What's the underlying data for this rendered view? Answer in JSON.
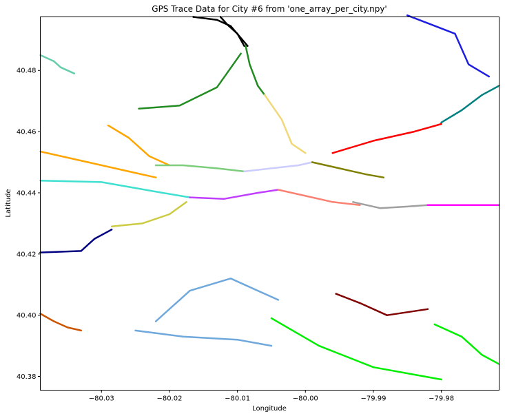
{
  "chart_data": {
    "type": "scatter",
    "title": "GPS Trace Data for City #6 from 'one_array_per_city.npy'",
    "xlabel": "Longitude",
    "ylabel": "Latitude",
    "xlim": [
      -80.039,
      -79.9715
    ],
    "ylim": [
      40.3755,
      40.4975
    ],
    "xticks": [
      {
        "value": -80.03,
        "label": "−80.03"
      },
      {
        "value": -80.02,
        "label": "−80.02"
      },
      {
        "value": -80.01,
        "label": "−80.01"
      },
      {
        "value": -80.0,
        "label": "−80.00"
      },
      {
        "value": -79.99,
        "label": "−79.99"
      },
      {
        "value": -79.98,
        "label": "−79.98"
      }
    ],
    "yticks": [
      {
        "value": 40.38,
        "label": "40.38"
      },
      {
        "value": 40.4,
        "label": "40.40"
      },
      {
        "value": 40.42,
        "label": "40.42"
      },
      {
        "value": 40.44,
        "label": "40.44"
      },
      {
        "value": 40.46,
        "label": "40.46"
      },
      {
        "value": 40.48,
        "label": "40.48"
      }
    ],
    "grid": false,
    "legend": "none",
    "series": [
      {
        "color": "#000000",
        "points": [
          [
            -80.0125,
            40.4975
          ],
          [
            -80.0115,
            40.495
          ],
          [
            -80.01,
            40.492
          ],
          [
            -80.009,
            40.488
          ]
        ]
      },
      {
        "color": "#000000",
        "points": [
          [
            -80.0165,
            40.4975
          ],
          [
            -80.013,
            40.4965
          ],
          [
            -80.011,
            40.4945
          ],
          [
            -80.0085,
            40.488
          ]
        ]
      },
      {
        "color": "#228b22",
        "points": [
          [
            -80.0088,
            40.488
          ],
          [
            -80.0082,
            40.482
          ],
          [
            -80.007,
            40.475
          ],
          [
            -80.006,
            40.472
          ]
        ]
      },
      {
        "color": "#228b22",
        "points": [
          [
            -80.0245,
            40.4675
          ],
          [
            -80.0185,
            40.4685
          ],
          [
            -80.013,
            40.4745
          ],
          [
            -80.0095,
            40.4855
          ]
        ]
      },
      {
        "color": "#f0d878",
        "points": [
          [
            -80.006,
            40.472
          ],
          [
            -80.0035,
            40.464
          ],
          [
            -80.002,
            40.456
          ],
          [
            -80.0,
            40.453
          ]
        ]
      },
      {
        "color": "#ffa500",
        "points": [
          [
            -80.039,
            40.4535
          ],
          [
            -80.032,
            40.45
          ],
          [
            -80.026,
            40.447
          ],
          [
            -80.022,
            40.445
          ]
        ]
      },
      {
        "color": "#ffa500",
        "points": [
          [
            -80.029,
            40.462
          ],
          [
            -80.026,
            40.458
          ],
          [
            -80.023,
            40.452
          ],
          [
            -80.02,
            40.449
          ]
        ]
      },
      {
        "color": "#7ccd7c",
        "points": [
          [
            -80.022,
            40.449
          ],
          [
            -80.018,
            40.449
          ],
          [
            -80.013,
            40.448
          ],
          [
            -80.009,
            40.447
          ]
        ]
      },
      {
        "color": "#ccccff",
        "points": [
          [
            -80.009,
            40.447
          ],
          [
            -80.005,
            40.448
          ],
          [
            -80.001,
            40.449
          ],
          [
            -79.999,
            40.45
          ]
        ]
      },
      {
        "color": "#808000",
        "points": [
          [
            -79.999,
            40.45
          ],
          [
            -79.995,
            40.448
          ],
          [
            -79.991,
            40.446
          ],
          [
            -79.9885,
            40.445
          ]
        ]
      },
      {
        "color": "#ff0000",
        "points": [
          [
            -79.996,
            40.453
          ],
          [
            -79.99,
            40.457
          ],
          [
            -79.984,
            40.46
          ],
          [
            -79.98,
            40.4625
          ]
        ]
      },
      {
        "color": "#008080",
        "points": [
          [
            -79.98,
            40.463
          ],
          [
            -79.977,
            40.467
          ],
          [
            -79.974,
            40.472
          ],
          [
            -79.9715,
            40.475
          ]
        ]
      },
      {
        "color": "#40e0d0",
        "points": [
          [
            -80.039,
            40.444
          ],
          [
            -80.03,
            40.4435
          ],
          [
            -80.021,
            40.44
          ],
          [
            -80.017,
            40.4385
          ]
        ]
      },
      {
        "color": "#bf3eff",
        "points": [
          [
            -80.017,
            40.4385
          ],
          [
            -80.012,
            40.438
          ],
          [
            -80.007,
            40.44
          ],
          [
            -80.004,
            40.441
          ]
        ]
      },
      {
        "color": "#fa8072",
        "points": [
          [
            -80.004,
            40.441
          ],
          [
            -80.0,
            40.439
          ],
          [
            -79.996,
            40.437
          ],
          [
            -79.992,
            40.436
          ]
        ]
      },
      {
        "color": "#a0a0a0",
        "points": [
          [
            -79.993,
            40.437
          ],
          [
            -79.989,
            40.435
          ],
          [
            -79.985,
            40.4355
          ],
          [
            -79.982,
            40.436
          ]
        ]
      },
      {
        "color": "#ff00ff",
        "points": [
          [
            -79.982,
            40.436
          ],
          [
            -79.978,
            40.436
          ],
          [
            -79.974,
            40.436
          ],
          [
            -79.9715,
            40.436
          ]
        ]
      },
      {
        "color": "#000080",
        "points": [
          [
            -80.039,
            40.4205
          ],
          [
            -80.033,
            40.421
          ],
          [
            -80.031,
            40.425
          ],
          [
            -80.0285,
            40.428
          ]
        ]
      },
      {
        "color": "#cccc44",
        "points": [
          [
            -80.0285,
            40.429
          ],
          [
            -80.024,
            40.43
          ],
          [
            -80.02,
            40.433
          ],
          [
            -80.0175,
            40.437
          ]
        ]
      },
      {
        "color": "#1e1ee0",
        "points": [
          [
            -79.985,
            40.498
          ],
          [
            -79.978,
            40.492
          ],
          [
            -79.976,
            40.482
          ],
          [
            -79.973,
            40.478
          ]
        ]
      },
      {
        "color": "#66cdaa",
        "points": [
          [
            -80.039,
            40.485
          ],
          [
            -80.037,
            40.483
          ],
          [
            -80.036,
            40.481
          ],
          [
            -80.034,
            40.479
          ]
        ]
      },
      {
        "color": "#6fa8dc",
        "points": [
          [
            -80.022,
            40.398
          ],
          [
            -80.017,
            40.408
          ],
          [
            -80.011,
            40.412
          ],
          [
            -80.004,
            40.405
          ]
        ]
      },
      {
        "color": "#6fa8dc",
        "points": [
          [
            -80.025,
            40.395
          ],
          [
            -80.018,
            40.393
          ],
          [
            -80.01,
            40.392
          ],
          [
            -80.005,
            40.39
          ]
        ]
      },
      {
        "color": "#800000",
        "points": [
          [
            -79.9955,
            40.407
          ],
          [
            -79.992,
            40.404
          ],
          [
            -79.988,
            40.4
          ],
          [
            -79.982,
            40.402
          ]
        ]
      },
      {
        "color": "#cc5500",
        "points": [
          [
            -80.039,
            40.4005
          ],
          [
            -80.037,
            40.398
          ],
          [
            -80.035,
            40.396
          ],
          [
            -80.033,
            40.395
          ]
        ]
      },
      {
        "color": "#00ee00",
        "points": [
          [
            -80.005,
            40.399
          ],
          [
            -79.998,
            40.39
          ],
          [
            -79.99,
            40.383
          ],
          [
            -79.98,
            40.379
          ]
        ]
      },
      {
        "color": "#00ee00",
        "points": [
          [
            -79.981,
            40.397
          ],
          [
            -79.977,
            40.393
          ],
          [
            -79.974,
            40.387
          ],
          [
            -79.9715,
            40.384
          ]
        ]
      }
    ]
  }
}
